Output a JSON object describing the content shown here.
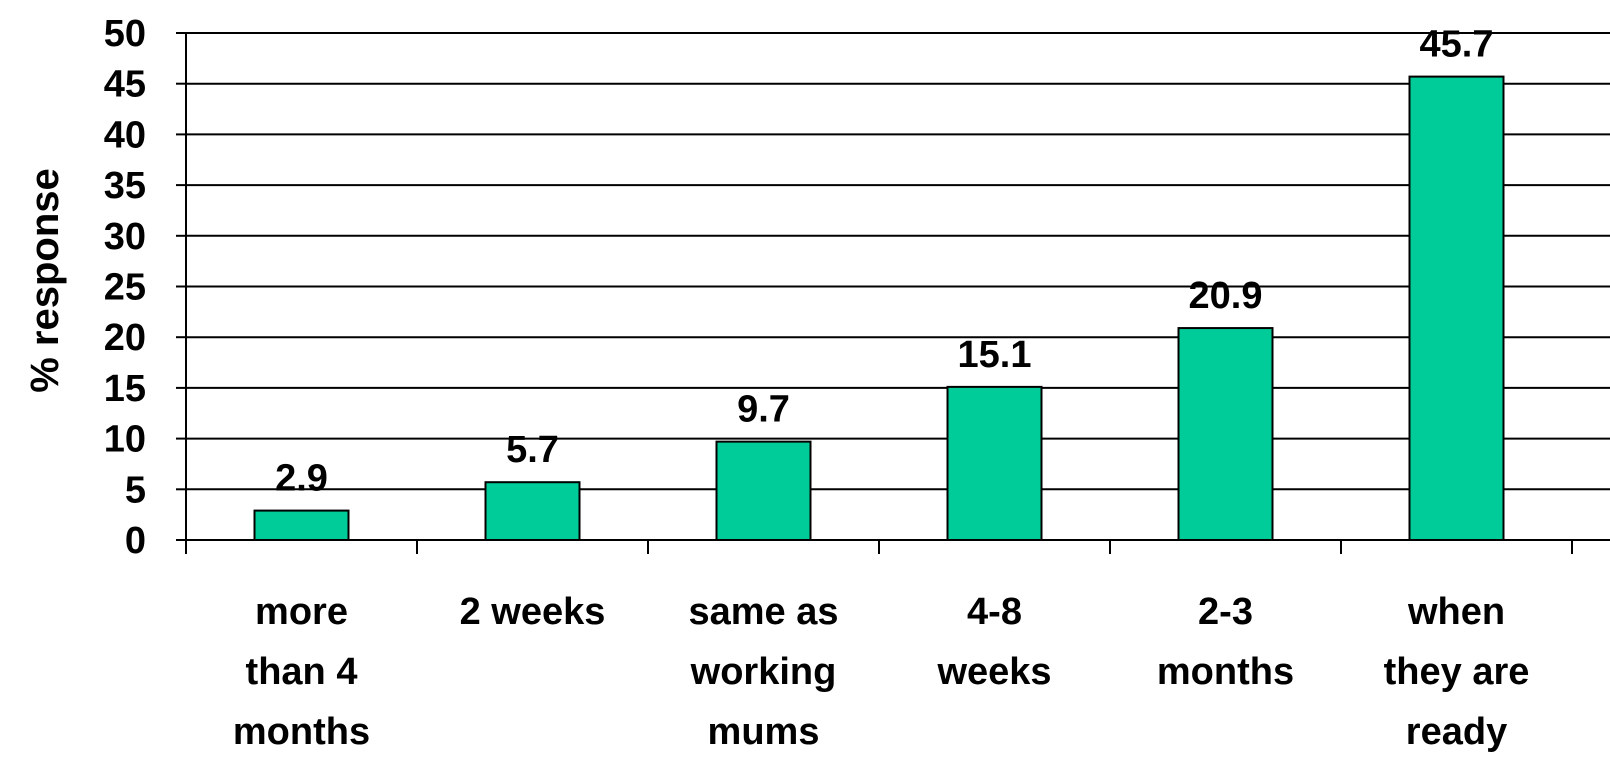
{
  "chart_data": {
    "type": "bar",
    "categories": [
      [
        "more",
        "than 4",
        "months"
      ],
      [
        "2 weeks"
      ],
      [
        "same as",
        "working",
        "mums"
      ],
      [
        "4-8",
        "weeks"
      ],
      [
        "2-3",
        "months"
      ],
      [
        "when",
        "they are",
        "ready"
      ]
    ],
    "values": [
      2.9,
      5.7,
      9.7,
      15.1,
      20.9,
      45.7
    ],
    "value_labels": [
      "2.9",
      "5.7",
      "9.7",
      "15.1",
      "20.9",
      "45.7"
    ],
    "title": "",
    "xlabel": "",
    "ylabel": "% response",
    "ylim": [
      0,
      50
    ],
    "yticks": [
      0,
      5,
      10,
      15,
      20,
      25,
      30,
      35,
      40,
      45,
      50
    ],
    "grid": true,
    "legend": "none",
    "bar_color": "#00CC99"
  }
}
